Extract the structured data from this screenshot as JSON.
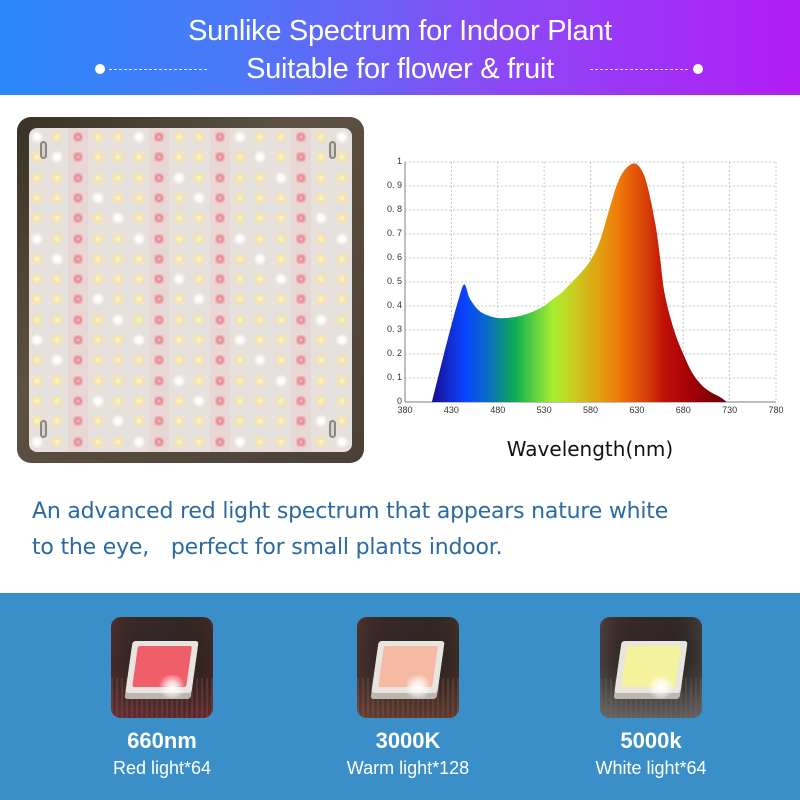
{
  "header": {
    "title": "Sunlike Spectrum for Indoor Plant",
    "subtitle": "Suitable for flower & fruit",
    "gradient_start": "#2a88fc",
    "gradient_end": "#b21cf5"
  },
  "panel": {
    "led_columns": 16,
    "led_rows": 16,
    "red_column_indices": [
      2,
      6,
      9,
      13
    ]
  },
  "chart_data": {
    "type": "area",
    "title": "",
    "xlabel": "Wavelength(nm)",
    "ylabel": "",
    "xlim": [
      380,
      780
    ],
    "ylim": [
      0,
      1
    ],
    "x_ticks": [
      380,
      430,
      480,
      530,
      580,
      630,
      680,
      730,
      780
    ],
    "y_ticks": [
      "0",
      "0.1",
      "0.2",
      "0.3",
      "0.4",
      "0.5",
      "0.6",
      "0.7",
      "0.8",
      "0.9",
      "1"
    ],
    "grid": true,
    "fill": "visible-spectrum gradient",
    "x": [
      409,
      420,
      430,
      438,
      444,
      450,
      460,
      470,
      480,
      490,
      500,
      510,
      520,
      530,
      540,
      550,
      560,
      570,
      580,
      590,
      600,
      610,
      620,
      630,
      640,
      650,
      655,
      660,
      670,
      680,
      690,
      700,
      710,
      720,
      727
    ],
    "values": [
      0.0,
      0.17,
      0.32,
      0.43,
      0.49,
      0.43,
      0.38,
      0.36,
      0.35,
      0.35,
      0.355,
      0.365,
      0.38,
      0.4,
      0.43,
      0.46,
      0.5,
      0.54,
      0.59,
      0.67,
      0.8,
      0.92,
      0.98,
      0.99,
      0.92,
      0.74,
      0.6,
      0.45,
      0.3,
      0.2,
      0.12,
      0.07,
      0.04,
      0.02,
      0.0
    ]
  },
  "description": {
    "line1": "An advanced red light spectrum that appears nature white",
    "line2": "to the eye,　perfect for small plants indoor."
  },
  "chips": [
    {
      "name": "660nm",
      "count": "Red light*64",
      "face_color": "#f05e6a",
      "tint": "#ff4458"
    },
    {
      "name": "3000K",
      "count": "Warm light*128",
      "face_color": "#f6b9a3",
      "tint": "#ff7a5a"
    },
    {
      "name": "5000k",
      "count": "White light*64",
      "face_color": "#f4f29a",
      "tint": "#ffffff"
    }
  ]
}
